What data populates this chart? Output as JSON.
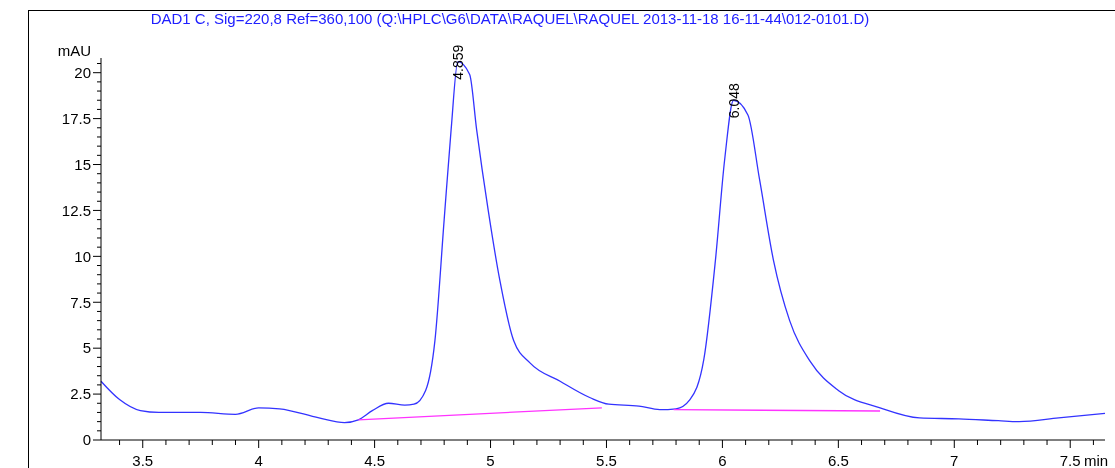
{
  "chart_data": {
    "type": "line",
    "title": "DAD1 C, Sig=220,8 Ref=360,100 (Q:\\HPLC\\G6\\DATA\\RAQUEL\\RAQUEL 2013-11-18 16-11-44\\012-0101.D)",
    "xlabel": "min",
    "ylabel": "mAU",
    "xlim": [
      3.32,
      7.65
    ],
    "ylim": [
      0,
      20.8
    ],
    "xticks": [
      {
        "value": 3.4,
        "label": null
      },
      3.5,
      {
        "value": 3.6,
        "label": null
      },
      {
        "value": 3.7,
        "label": null
      },
      {
        "value": 3.8,
        "label": null
      },
      {
        "value": 3.9,
        "label": null
      },
      4,
      {
        "value": 4.1,
        "label": null
      },
      {
        "value": 4.2,
        "label": null
      },
      {
        "value": 4.3,
        "label": null
      },
      {
        "value": 4.4,
        "label": null
      },
      4.5,
      {
        "value": 4.6,
        "label": null
      },
      {
        "value": 4.7,
        "label": null
      },
      {
        "value": 4.8,
        "label": null
      },
      {
        "value": 4.9,
        "label": null
      },
      5,
      {
        "value": 5.1,
        "label": null
      },
      {
        "value": 5.2,
        "label": null
      },
      {
        "value": 5.3,
        "label": null
      },
      {
        "value": 5.4,
        "label": null
      },
      5.5,
      {
        "value": 5.6,
        "label": null
      },
      {
        "value": 5.7,
        "label": null
      },
      {
        "value": 5.8,
        "label": null
      },
      {
        "value": 5.9,
        "label": null
      },
      6,
      {
        "value": 6.1,
        "label": null
      },
      {
        "value": 6.2,
        "label": null
      },
      {
        "value": 6.3,
        "label": null
      },
      {
        "value": 6.4,
        "label": null
      },
      6.5,
      {
        "value": 6.6,
        "label": null
      },
      {
        "value": 6.7,
        "label": null
      },
      {
        "value": 6.8,
        "label": null
      },
      {
        "value": 6.9,
        "label": null
      },
      7,
      {
        "value": 7.1,
        "label": null
      },
      {
        "value": 7.2,
        "label": null
      },
      {
        "value": 7.3,
        "label": null
      },
      {
        "value": 7.4,
        "label": null
      },
      7.5,
      {
        "value": 7.6,
        "label": null
      }
    ],
    "yticks": [
      0,
      {
        "value": 0.5,
        "label": null
      },
      {
        "value": 1,
        "label": null
      },
      {
        "value": 1.5,
        "label": null
      },
      {
        "value": 2,
        "label": null
      },
      2.5,
      {
        "value": 3,
        "label": null
      },
      {
        "value": 3.5,
        "label": null
      },
      {
        "value": 4,
        "label": null
      },
      {
        "value": 4.5,
        "label": null
      },
      5,
      {
        "value": 5.5,
        "label": null
      },
      {
        "value": 6,
        "label": null
      },
      {
        "value": 6.5,
        "label": null
      },
      {
        "value": 7,
        "label": null
      },
      7.5,
      {
        "value": 8,
        "label": null
      },
      {
        "value": 8.5,
        "label": null
      },
      {
        "value": 9,
        "label": null
      },
      {
        "value": 9.5,
        "label": null
      },
      10,
      {
        "value": 10.5,
        "label": null
      },
      {
        "value": 11,
        "label": null
      },
      {
        "value": 11.5,
        "label": null
      },
      {
        "value": 12,
        "label": null
      },
      12.5,
      {
        "value": 13,
        "label": null
      },
      {
        "value": 13.5,
        "label": null
      },
      {
        "value": 14,
        "label": null
      },
      {
        "value": 14.5,
        "label": null
      },
      15,
      {
        "value": 15.5,
        "label": null
      },
      {
        "value": 16,
        "label": null
      },
      {
        "value": 16.5,
        "label": null
      },
      {
        "value": 17,
        "label": null
      },
      17.5,
      {
        "value": 18,
        "label": null
      },
      {
        "value": 18.5,
        "label": null
      },
      {
        "value": 19,
        "label": null
      },
      {
        "value": 19.5,
        "label": null
      },
      20,
      {
        "value": 20.5,
        "label": null
      }
    ],
    "grid": false,
    "series": [
      {
        "color": "#3333ff",
        "x": [
          3.32,
          3.4,
          3.49,
          3.57,
          3.75,
          3.9,
          4.0,
          4.09,
          4.26,
          4.37,
          4.43,
          4.49,
          4.56,
          4.63,
          4.67,
          4.72,
          4.76,
          4.8,
          4.83,
          4.859,
          4.91,
          4.94,
          4.99,
          5.04,
          5.1,
          5.17,
          5.3,
          5.43,
          5.51,
          5.64,
          5.73,
          5.8,
          5.86,
          5.92,
          5.97,
          6.01,
          6.048,
          6.11,
          6.16,
          6.22,
          6.29,
          6.38,
          6.5,
          6.68,
          6.85,
          7.02,
          7.19,
          7.28,
          7.45,
          7.65
        ],
        "values": [
          3.2,
          2.2,
          1.6,
          1.5,
          1.5,
          1.4,
          1.75,
          1.7,
          1.2,
          0.95,
          1.1,
          1.6,
          2.0,
          1.9,
          1.95,
          2.7,
          5.4,
          12,
          16.9,
          20.6,
          19.9,
          16.9,
          12.5,
          8.7,
          5.4,
          4.2,
          3.2,
          2.3,
          1.95,
          1.85,
          1.65,
          1.7,
          2.2,
          4.4,
          9.8,
          15.3,
          18.5,
          17.7,
          14.2,
          9.8,
          6.5,
          4.25,
          2.7,
          1.75,
          1.2,
          1.15,
          1.05,
          1.0,
          1.2,
          1.45
        ]
      },
      {
        "color": "#ff33ff",
        "x": [
          4.43,
          5.48
        ],
        "values": [
          1.1,
          1.75
        ]
      },
      {
        "color": "#ff33ff",
        "x": [
          5.79,
          6.68
        ],
        "values": [
          1.65,
          1.58
        ]
      }
    ],
    "annotations": [
      {
        "text": "4.859",
        "x": 4.859,
        "y": 20.6
      },
      {
        "text": "6.048",
        "x": 6.048,
        "y": 18.5
      }
    ]
  }
}
